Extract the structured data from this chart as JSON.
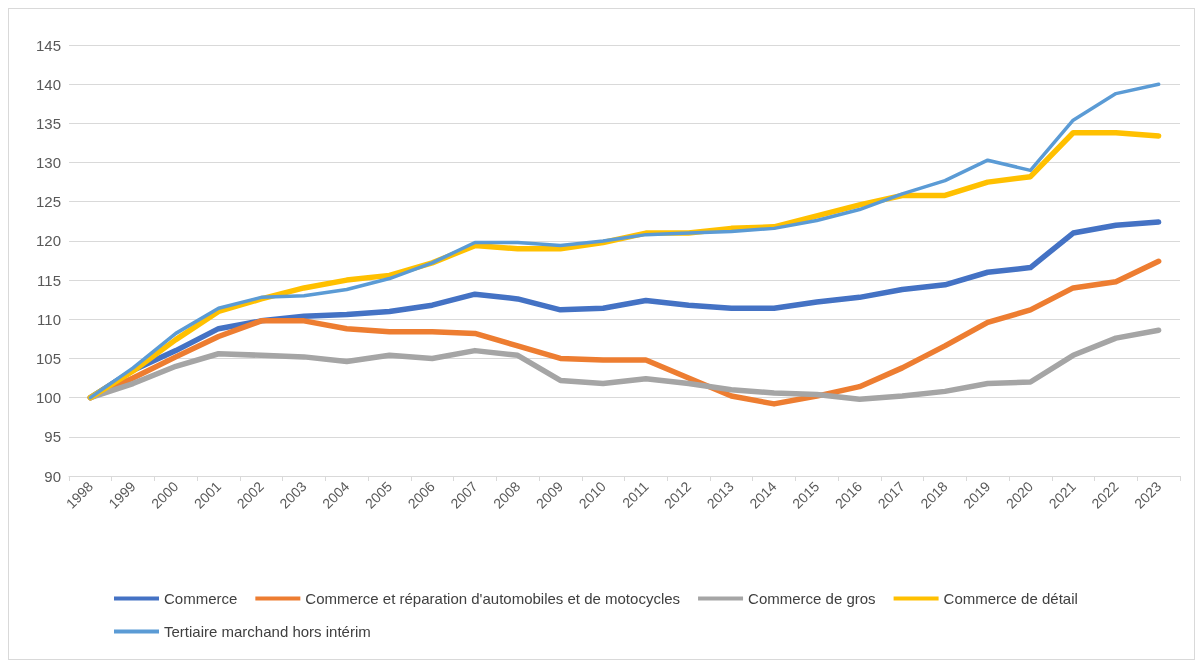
{
  "chart_data": {
    "type": "line",
    "categories": [
      "1998",
      "1999",
      "2000",
      "2001",
      "2002",
      "2003",
      "2004",
      "2005",
      "2006",
      "2007",
      "2008",
      "2009",
      "2010",
      "2011",
      "2012",
      "2013",
      "2014",
      "2015",
      "2016",
      "2017",
      "2018",
      "2019",
      "2020",
      "2021",
      "2022",
      "2023"
    ],
    "series": [
      {
        "name": "Commerce",
        "color": "#4472c4",
        "values": [
          100,
          103.5,
          106,
          108.8,
          109.8,
          110.4,
          110.6,
          111,
          111.8,
          113.2,
          112.6,
          111.2,
          111.4,
          112.4,
          111.8,
          111.4,
          111.4,
          112.2,
          112.8,
          113.8,
          114.4,
          116,
          116.6,
          121,
          122,
          122.4
        ]
      },
      {
        "name": "Commerce et réparation d'automobiles et de motocycles",
        "color": "#ed7d31",
        "values": [
          100,
          102.5,
          105.2,
          107.8,
          109.8,
          109.8,
          108.8,
          108.4,
          108.4,
          108.2,
          106.6,
          105,
          104.8,
          104.8,
          102.5,
          100.2,
          99.2,
          100.2,
          101.4,
          103.8,
          106.6,
          109.6,
          111.2,
          114,
          114.8,
          117.4
        ]
      },
      {
        "name": "Commerce de gros",
        "color": "#a5a5a5",
        "values": [
          100,
          101.8,
          104,
          105.6,
          105.4,
          105.2,
          104.6,
          105.4,
          105,
          106,
          105.4,
          102.2,
          101.8,
          102.4,
          101.8,
          101,
          100.6,
          100.4,
          99.8,
          100.2,
          100.8,
          101.8,
          102,
          105.4,
          107.6,
          108.6
        ]
      },
      {
        "name": "Commerce de détail",
        "color": "#ffc000",
        "values": [
          100,
          103.4,
          107.4,
          111,
          112.6,
          114,
          115,
          115.6,
          117.2,
          119.4,
          119,
          119,
          119.8,
          121,
          121,
          121.6,
          121.8,
          123.2,
          124.6,
          125.8,
          125.8,
          127.5,
          128.2,
          133.8,
          133.8,
          133.4
        ]
      },
      {
        "name": "Tertiaire marchand hors intérim",
        "color": "#5b9bd5",
        "values": [
          100,
          103.8,
          108.2,
          111.4,
          112.8,
          113,
          113.8,
          115.2,
          117.2,
          119.8,
          119.8,
          119.4,
          120,
          120.8,
          121,
          121.2,
          121.6,
          122.6,
          124,
          126,
          127.7,
          130.3,
          129,
          135.4,
          138.8,
          140
        ]
      }
    ],
    "ylim": [
      90,
      145
    ],
    "yticks": [
      90,
      95,
      100,
      105,
      110,
      115,
      120,
      125,
      130,
      135,
      140,
      145
    ],
    "grid": "y",
    "legend": "bottom",
    "marker": "none",
    "line_style": "solid"
  }
}
